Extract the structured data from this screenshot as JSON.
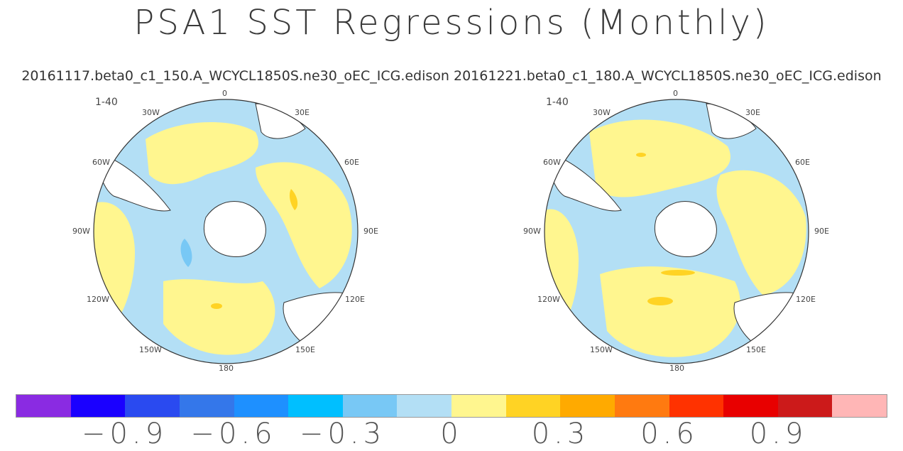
{
  "title": "PSA1 SST Regressions (Monthly)",
  "subtitle": "20161117.beta0_c1_150.A_WCYCL1850S.ne30_oEC_ICG.edison 20161221.beta0_c1_180.A_WCYCL1850S.ne30_oEC_ICG.edison",
  "panels": [
    {
      "segment_label": "1-40",
      "lon_labels": {
        "top": "0",
        "30W": "30W",
        "30E": "30E",
        "60W": "60W",
        "60E": "60E",
        "90W": "90W",
        "90E": "90E",
        "120W": "120W",
        "120E": "120E",
        "150W": "150W",
        "150E": "150E",
        "bottom": "180"
      }
    },
    {
      "segment_label": "1-40",
      "lon_labels": {
        "top": "0",
        "30W": "30W",
        "30E": "30E",
        "60W": "60W",
        "60E": "60E",
        "90W": "90W",
        "90E": "90E",
        "120W": "120W",
        "120E": "120E",
        "150W": "150W",
        "150E": "150E",
        "bottom": "180"
      }
    }
  ],
  "colorbar": {
    "colors": [
      "#8a2be2",
      "#1a00ff",
      "#2a4af0",
      "#3477ea",
      "#1e90ff",
      "#00bfff",
      "#78c8f5",
      "#b3dff5",
      "#fff68f",
      "#ffd324",
      "#ffaa00",
      "#ff7a10",
      "#ff3200",
      "#e80000",
      "#cc1a1a",
      "#ffb6b6"
    ],
    "tick_labels": [
      "−0.9",
      "−0.6",
      "−0.3",
      "0",
      "0.3",
      "0.6",
      "0.9"
    ]
  },
  "palette": {
    "land": "#ffffff",
    "neg_weak": "#b3dff5",
    "pos_weak": "#fff68f",
    "pos_mid": "#ffd324",
    "neg_mid": "#78c8f5",
    "coast": "#333333"
  }
}
